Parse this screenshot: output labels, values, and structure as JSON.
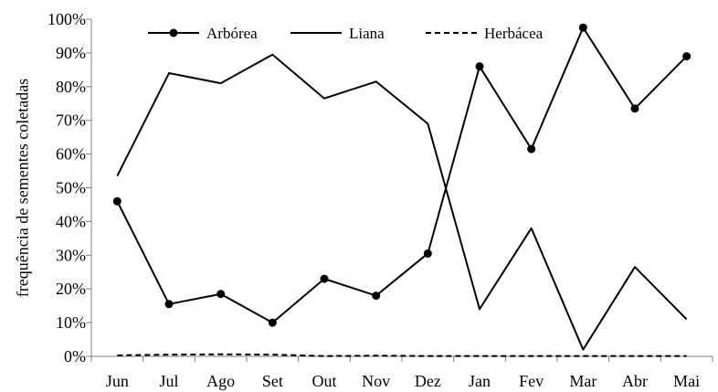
{
  "chart_data": {
    "type": "line",
    "categories": [
      "Jun",
      "Jul",
      "Ago",
      "Set",
      "Out",
      "Nov",
      "Dez",
      "Jan",
      "Fev",
      "Mar",
      "Abr",
      "Mai"
    ],
    "series": [
      {
        "name": "Arbórea",
        "values": [
          46,
          15.5,
          18.5,
          10,
          23,
          18,
          30.5,
          86,
          61.5,
          97.5,
          73.5,
          89
        ],
        "style": "solid-markers",
        "color": "#000000"
      },
      {
        "name": "Liana",
        "values": [
          53.5,
          84,
          81,
          89.5,
          76.5,
          81.5,
          69,
          14,
          38,
          2,
          26.5,
          11
        ],
        "style": "solid",
        "color": "#000000"
      },
      {
        "name": "Herbácea",
        "values": [
          0.3,
          0.5,
          0.6,
          0.5,
          0.1,
          0.2,
          0.1,
          0.1,
          0.1,
          0.1,
          0.1,
          0.1
        ],
        "style": "dashed",
        "color": "#000000"
      }
    ],
    "yticks": [
      "0%",
      "10%",
      "20%",
      "30%",
      "40%",
      "50%",
      "60%",
      "70%",
      "80%",
      "90%",
      "100%"
    ],
    "ylabel": "frequência de sementes coletadas",
    "xlabel": "",
    "title": "",
    "ylim": [
      0,
      100
    ],
    "grid": false,
    "legend_position": "top"
  }
}
